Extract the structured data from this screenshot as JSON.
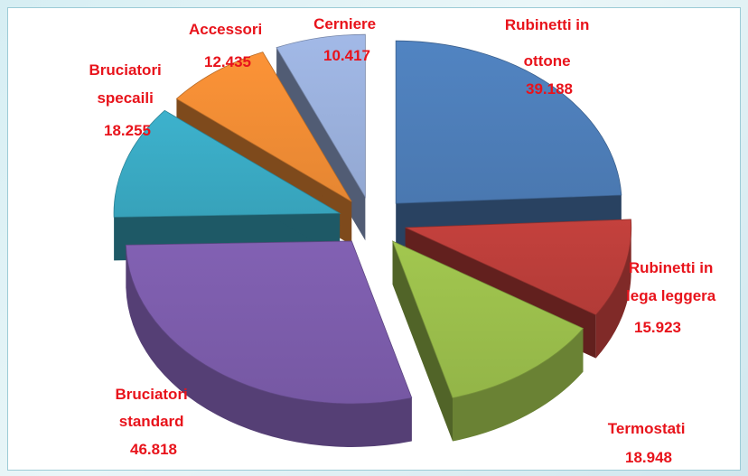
{
  "chart_data": {
    "type": "pie",
    "title": "",
    "style": "3d-exploded",
    "slices": [
      {
        "label_lines": [
          "Rubinetti in",
          "ottone"
        ],
        "value": 39.188,
        "value_text": "39.188",
        "color": "#4a78b0"
      },
      {
        "label_lines": [
          "Rubinetti in",
          "lega leggera"
        ],
        "value": 15.923,
        "value_text": "15.923",
        "color": "#b23b37"
      },
      {
        "label_lines": [
          "Termostati"
        ],
        "value": 18.948,
        "value_text": "18.948",
        "color": "#93b548"
      },
      {
        "label_lines": [
          "Bruciatori",
          "standard"
        ],
        "value": 46.818,
        "value_text": "46.818",
        "color": "#7658a3"
      },
      {
        "label_lines": [
          "Bruciatori",
          "specaili"
        ],
        "value": 18.255,
        "value_text": "18.255",
        "color": "#37a2ba"
      },
      {
        "label_lines": [
          "Accessori"
        ],
        "value": 12.435,
        "value_text": "12.435",
        "color": "#e58632"
      },
      {
        "label_lines": [
          "Cerniere"
        ],
        "value": 10.417,
        "value_text": "10.417",
        "color": "#93a8d2"
      }
    ],
    "label_color": "#e8131b",
    "legend": "none",
    "grid": false
  }
}
